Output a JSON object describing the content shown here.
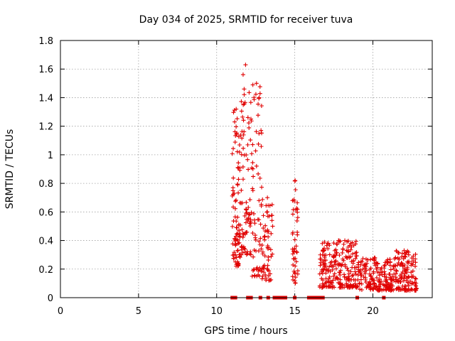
{
  "chart_data": {
    "type": "scatter",
    "title": "Day 034 of 2025, SRMTID for receiver tuva",
    "xlabel": "GPS time / hours",
    "ylabel": "SRMTID / TECUs",
    "xlim": [
      0,
      23.8
    ],
    "ylim": [
      0,
      1.8
    ],
    "x_ticks": [
      0,
      5,
      10,
      15,
      20
    ],
    "y_ticks": [
      0,
      0.2,
      0.4,
      0.6,
      0.8,
      1,
      1.2,
      1.4,
      1.6,
      1.8
    ],
    "x_tick_labels": [
      "0",
      "5",
      "10",
      "15",
      "20"
    ],
    "y_tick_labels": [
      "0",
      "0.2",
      "0.4",
      "0.6",
      "0.8",
      "1",
      "1.2",
      "1.4",
      "1.6",
      "1.8"
    ],
    "grid": true,
    "marker": "plus",
    "series_color": "#e00000",
    "clusters": [
      {
        "x_start": 11.0,
        "x_end": 11.5,
        "y_min": 0.22,
        "y_max": 1.32,
        "count": 90
      },
      {
        "x_start": 11.5,
        "x_end": 12.2,
        "y_min": 0.3,
        "y_max": 1.63,
        "count": 80
      },
      {
        "x_start": 12.2,
        "x_end": 12.9,
        "y_min": 0.15,
        "y_max": 1.5,
        "count": 70
      },
      {
        "x_start": 12.9,
        "x_end": 13.6,
        "y_min": 0.12,
        "y_max": 0.7,
        "count": 60
      },
      {
        "x_start": 14.85,
        "x_end": 15.2,
        "y_min": 0.1,
        "y_max": 0.82,
        "count": 45
      },
      {
        "x_start": 16.6,
        "x_end": 19.0,
        "y_min": 0.07,
        "y_max": 0.4,
        "count": 220
      },
      {
        "x_start": 19.0,
        "x_end": 21.2,
        "y_min": 0.05,
        "y_max": 0.28,
        "count": 170
      },
      {
        "x_start": 21.2,
        "x_end": 22.8,
        "y_min": 0.05,
        "y_max": 0.33,
        "count": 140
      }
    ],
    "zero_points_x": [
      11.0,
      11.1,
      11.2,
      12.0,
      12.2,
      12.8,
      13.3,
      13.7,
      13.9,
      14.0,
      14.1,
      14.2,
      14.4,
      15.0,
      15.9,
      16.1,
      16.3,
      16.4,
      16.6,
      16.8,
      19.0,
      20.7
    ]
  }
}
